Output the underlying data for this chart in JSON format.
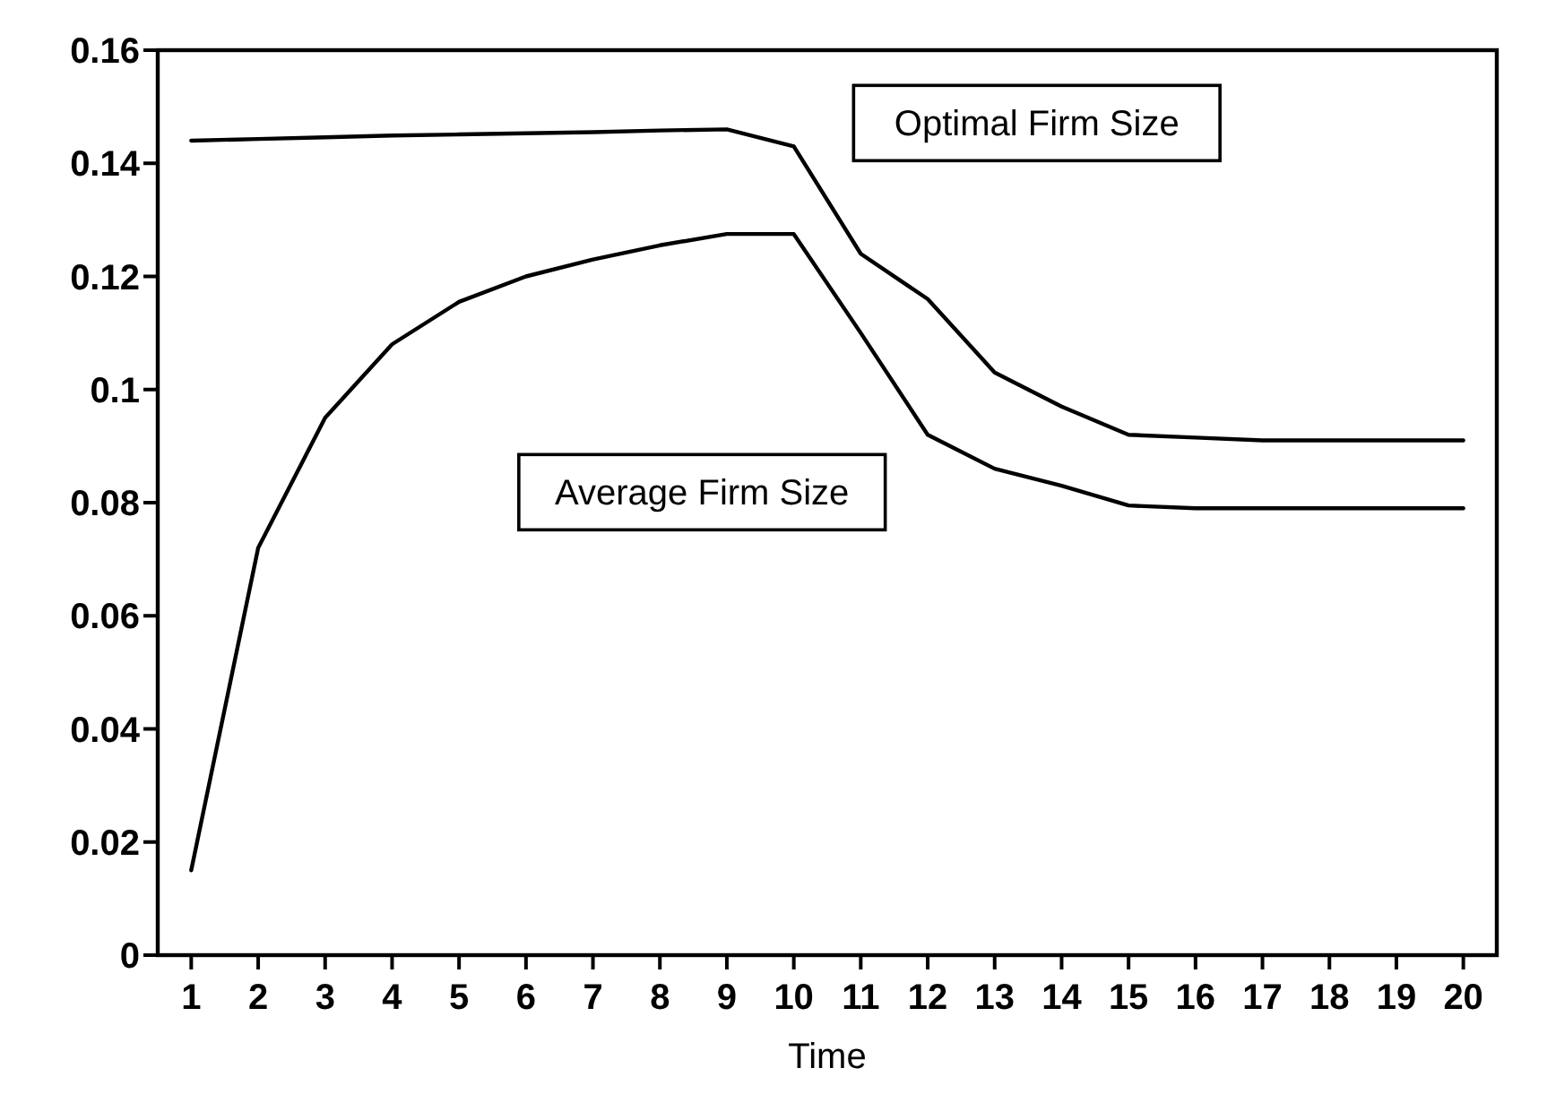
{
  "chart_data": {
    "type": "line",
    "xlabel": "Time",
    "x": [
      1,
      2,
      3,
      4,
      5,
      6,
      7,
      8,
      9,
      10,
      11,
      12,
      13,
      14,
      15,
      16,
      17,
      18,
      19,
      20
    ],
    "series": [
      {
        "name": "Optimal Firm Size",
        "color": "#000000",
        "values": [
          0.144,
          0.1443,
          0.1446,
          0.1449,
          0.1451,
          0.1453,
          0.1455,
          0.1458,
          0.146,
          0.143,
          0.124,
          0.116,
          0.103,
          0.097,
          0.092,
          0.0915,
          0.091,
          0.091,
          0.091,
          0.091
        ]
      },
      {
        "name": "Average Firm Size",
        "color": "#000000",
        "values": [
          0.015,
          0.072,
          0.095,
          0.108,
          0.1155,
          0.12,
          0.123,
          0.1255,
          0.1275,
          0.1275,
          0.11,
          0.092,
          0.086,
          0.083,
          0.0795,
          0.079,
          0.079,
          0.079,
          0.079,
          0.079
        ]
      }
    ],
    "xlim": [
      0.5,
      20.5
    ],
    "xticks": [
      1,
      2,
      3,
      4,
      5,
      6,
      7,
      8,
      9,
      10,
      11,
      12,
      13,
      14,
      15,
      16,
      17,
      18,
      19,
      20
    ],
    "ylim": [
      0,
      0.16
    ],
    "yticks": [
      0,
      0.02,
      0.04,
      0.06,
      0.08,
      0.1,
      0.12,
      0.14,
      0.16
    ],
    "grid": false,
    "legend": false,
    "marker": "none",
    "line_style": "solid"
  }
}
